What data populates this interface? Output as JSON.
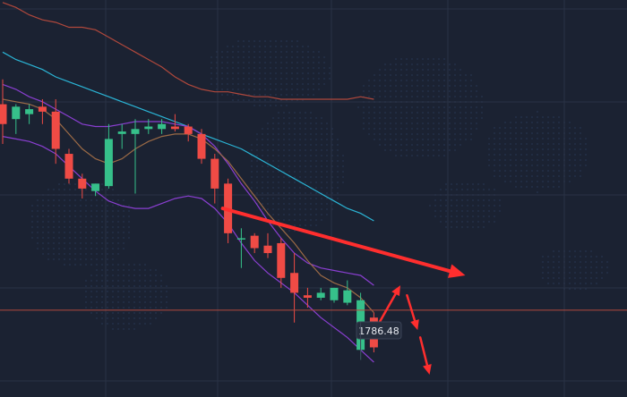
{
  "chart_data": {
    "type": "candlestick",
    "title": "",
    "xlabel": "",
    "ylabel": "",
    "ylim": [
      1779.0,
      1859.0
    ],
    "grid": true,
    "low_marker": {
      "value": "1786.48",
      "price": 1786.48
    },
    "horizontal_line": {
      "price": 1796.5,
      "color": "#b24a3c"
    },
    "colors": {
      "background": "#1b2232",
      "grid": "#2a3245",
      "bull": "#36c08a",
      "bear": "#ef4b45",
      "ma_cyan": "#2bb5d6",
      "ma_red": "#b0483c",
      "band_purple": "#8a3fd1",
      "ma_orange": "#9b6a46",
      "arrow": "#ff2e2e",
      "label_bg": "#252d3d",
      "label_text": "#e6e9ef"
    },
    "candles": [
      {
        "o": 1838.0,
        "h": 1843.0,
        "l": 1830.0,
        "c": 1834.0
      },
      {
        "o": 1835.0,
        "h": 1838.0,
        "l": 1832.0,
        "c": 1837.5
      },
      {
        "o": 1836.0,
        "h": 1838.0,
        "l": 1834.0,
        "c": 1837.0
      },
      {
        "o": 1837.5,
        "h": 1839.0,
        "l": 1834.0,
        "c": 1836.5
      },
      {
        "o": 1836.5,
        "h": 1839.0,
        "l": 1826.0,
        "c": 1829.0
      },
      {
        "o": 1828.0,
        "h": 1829.0,
        "l": 1822.0,
        "c": 1823.0
      },
      {
        "o": 1823.0,
        "h": 1824.0,
        "l": 1819.0,
        "c": 1821.0
      },
      {
        "o": 1820.5,
        "h": 1822.0,
        "l": 1819.5,
        "c": 1822.0
      },
      {
        "o": 1821.5,
        "h": 1834.0,
        "l": 1821.0,
        "c": 1831.0
      },
      {
        "o": 1832.0,
        "h": 1834.0,
        "l": 1829.0,
        "c": 1832.5
      },
      {
        "o": 1832.0,
        "h": 1835.0,
        "l": 1820.0,
        "c": 1833.0
      },
      {
        "o": 1833.0,
        "h": 1835.0,
        "l": 1832.0,
        "c": 1833.5
      },
      {
        "o": 1833.0,
        "h": 1835.0,
        "l": 1832.0,
        "c": 1834.0
      },
      {
        "o": 1833.5,
        "h": 1836.0,
        "l": 1832.5,
        "c": 1833.0
      },
      {
        "o": 1833.5,
        "h": 1834.0,
        "l": 1830.5,
        "c": 1832.0
      },
      {
        "o": 1832.0,
        "h": 1833.0,
        "l": 1826.0,
        "c": 1827.0
      },
      {
        "o": 1827.0,
        "h": 1828.0,
        "l": 1818.0,
        "c": 1821.0
      },
      {
        "o": 1822.0,
        "h": 1823.0,
        "l": 1810.0,
        "c": 1812.0
      },
      {
        "o": 1811.0,
        "h": 1813.0,
        "l": 1805.0,
        "c": 1811.0
      },
      {
        "o": 1811.5,
        "h": 1812.0,
        "l": 1808.0,
        "c": 1809.0
      },
      {
        "o": 1809.5,
        "h": 1812.0,
        "l": 1807.0,
        "c": 1808.0
      },
      {
        "o": 1810.0,
        "h": 1811.0,
        "l": 1801.0,
        "c": 1803.0
      },
      {
        "o": 1804.0,
        "h": 1808.0,
        "l": 1794.0,
        "c": 1800.0
      },
      {
        "o": 1799.5,
        "h": 1801.0,
        "l": 1797.0,
        "c": 1799.0
      },
      {
        "o": 1799.0,
        "h": 1801.0,
        "l": 1798.5,
        "c": 1800.0
      },
      {
        "o": 1798.5,
        "h": 1801.0,
        "l": 1798.0,
        "c": 1801.0
      },
      {
        "o": 1798.0,
        "h": 1802.5,
        "l": 1797.5,
        "c": 1800.5
      },
      {
        "o": 1788.5,
        "h": 1800.0,
        "l": 1786.48,
        "c": 1798.5
      },
      {
        "o": 1795.0,
        "h": 1796.0,
        "l": 1788.0,
        "c": 1789.0
      }
    ],
    "series": [
      {
        "key": "ma_red",
        "values": [
          1858.5,
          1857.5,
          1856.0,
          1855.0,
          1854.5,
          1853.5,
          1853.5,
          1853.0,
          1851.5,
          1850.0,
          1848.5,
          1847.0,
          1845.5,
          1843.5,
          1842.0,
          1841.0,
          1840.5,
          1840.5,
          1840.0,
          1839.5,
          1839.5,
          1839.0,
          1839.0,
          1839.0,
          1839.0,
          1839.0,
          1839.0,
          1839.5,
          1839.0
        ]
      },
      {
        "key": "ma_cyan",
        "values": [
          1848.5,
          1847.0,
          1846.0,
          1845.0,
          1843.5,
          1842.5,
          1841.5,
          1840.5,
          1839.5,
          1838.5,
          1837.5,
          1836.5,
          1835.5,
          1834.5,
          1833.5,
          1832.0,
          1831.0,
          1830.0,
          1829.0,
          1827.5,
          1826.0,
          1824.5,
          1823.0,
          1821.5,
          1820.0,
          1818.5,
          1817.0,
          1816.0,
          1814.5
        ]
      },
      {
        "key": "band_purple_upper",
        "values": [
          1842.0,
          1841.0,
          1839.5,
          1838.5,
          1837.0,
          1835.5,
          1834.0,
          1833.5,
          1833.5,
          1834.0,
          1834.5,
          1834.5,
          1834.5,
          1834.0,
          1833.5,
          1832.0,
          1829.5,
          1826.0,
          1822.0,
          1818.5,
          1814.5,
          1811.0,
          1808.0,
          1806.0,
          1805.0,
          1804.5,
          1804.0,
          1803.5,
          1801.5
        ]
      },
      {
        "key": "band_purple_lower",
        "values": [
          1831.5,
          1831.0,
          1830.5,
          1829.5,
          1828.0,
          1825.5,
          1823.0,
          1820.5,
          1818.5,
          1817.5,
          1817.0,
          1817.0,
          1818.0,
          1819.0,
          1819.5,
          1819.0,
          1817.0,
          1814.0,
          1810.0,
          1806.5,
          1804.0,
          1802.0,
          1800.0,
          1797.5,
          1795.0,
          1793.0,
          1791.0,
          1788.5,
          1786.0
        ]
      },
      {
        "key": "ma_orange",
        "values": [
          1839.0,
          1838.5,
          1838.0,
          1837.0,
          1835.0,
          1832.0,
          1829.0,
          1827.0,
          1826.0,
          1827.0,
          1829.0,
          1830.5,
          1831.5,
          1832.0,
          1832.0,
          1831.0,
          1829.0,
          1826.5,
          1823.0,
          1819.5,
          1816.0,
          1813.0,
          1810.0,
          1806.5,
          1803.5,
          1802.0,
          1801.0,
          1799.0,
          1796.0
        ]
      }
    ],
    "arrows": [
      {
        "from": [
          16.6,
          1817.0
        ],
        "to": [
          34.9,
          1803.5
        ],
        "head": "large"
      },
      {
        "from": [
          28.2,
          1793.0
        ],
        "to": [
          30.0,
          1801.5
        ],
        "head": "small"
      },
      {
        "from": [
          30.5,
          1799.5
        ],
        "to": [
          31.3,
          1792.5
        ],
        "head": "small"
      },
      {
        "from": [
          31.5,
          1791.0
        ],
        "to": [
          32.2,
          1783.5
        ],
        "head": "small"
      }
    ]
  }
}
